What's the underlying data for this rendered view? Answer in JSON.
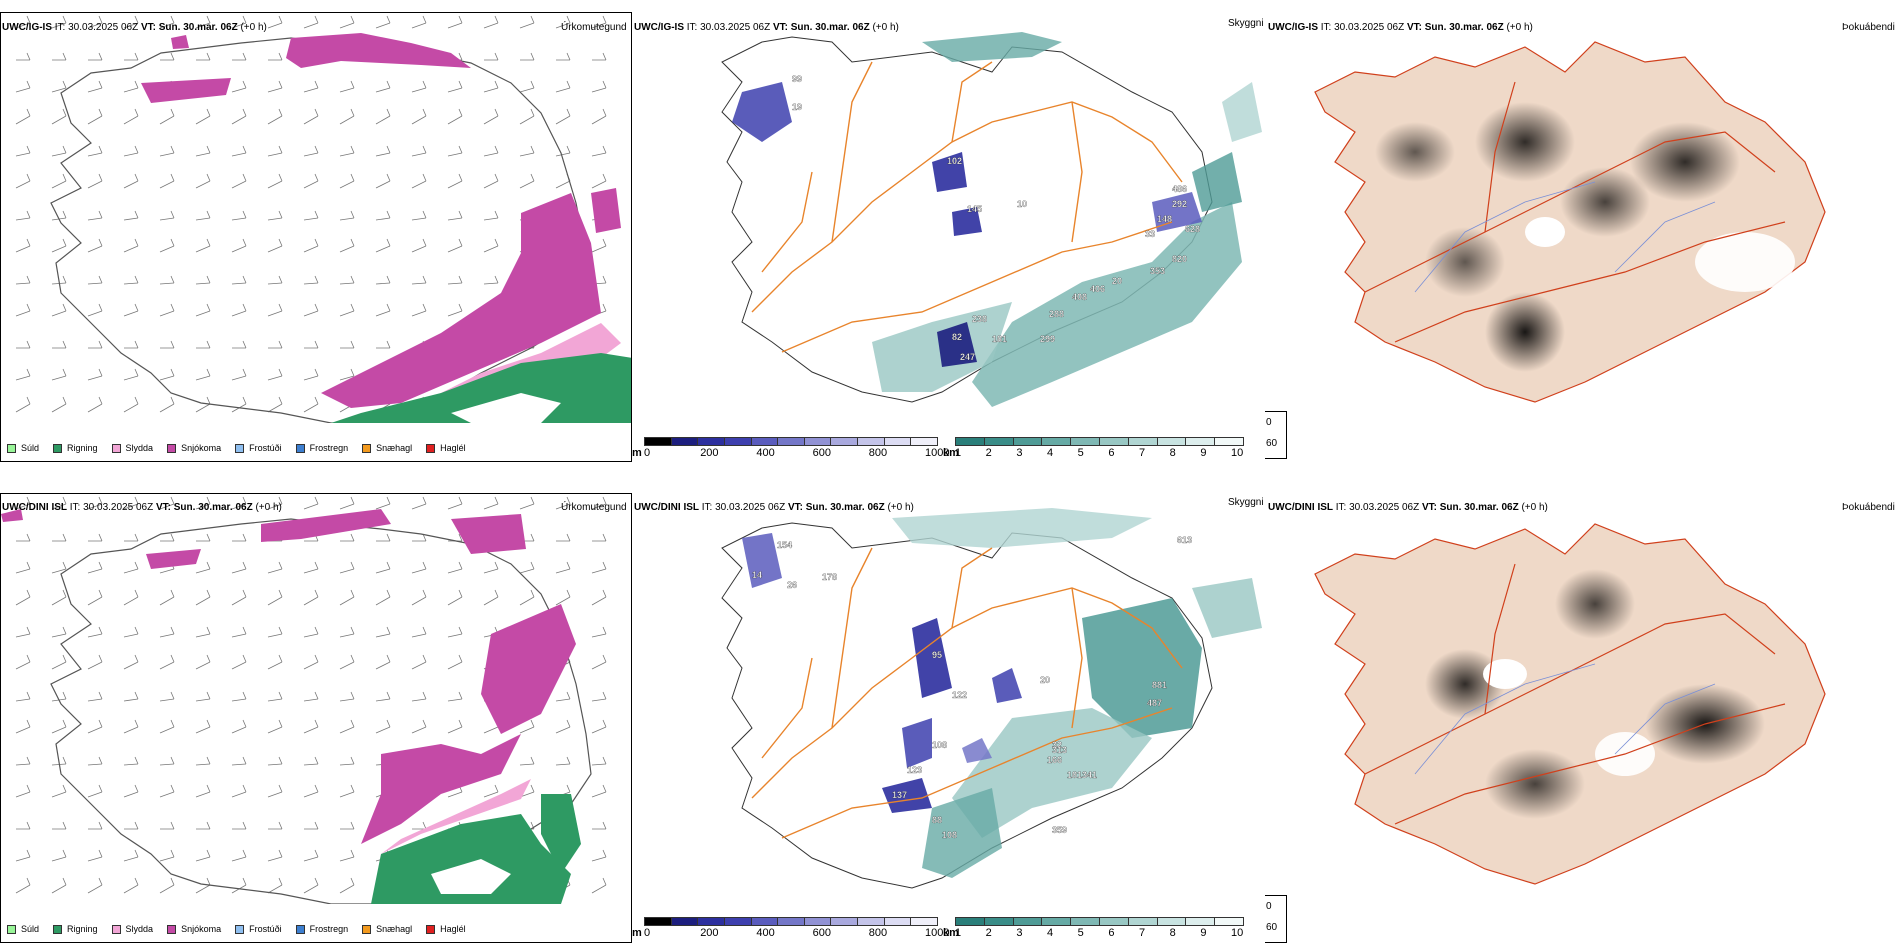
{
  "rows": [
    {
      "precip": {
        "header": {
          "model": "UWC/IG-IS",
          "it_label": "IT:",
          "it_value": "30.03.2025 06Z",
          "vt_label": "VT:",
          "vt_value": "Sun. 30.mar. 06Z",
          "lead": "(+0 h)"
        },
        "title": "Úrkomutegund"
      },
      "cloud": {
        "header": {
          "model": "UWC/IG-IS",
          "it_label": "IT:",
          "it_value": "30.03.2025 06Z",
          "vt_label": "VT:",
          "vt_value": "Sun. 30.mar. 06Z",
          "lead": "(+0 h)"
        },
        "title": "Skyggni",
        "labels": [
          "99",
          "19",
          "102",
          "145",
          "10",
          "486",
          "292",
          "148",
          "33",
          "628",
          "820",
          "353",
          "20",
          "406",
          "408",
          "288",
          "299",
          "82",
          "247",
          "181",
          "238"
        ]
      },
      "fog": {
        "header": {
          "model": "UWC/IG-IS",
          "it_label": "IT:",
          "it_value": "30.03.2025 06Z",
          "vt_label": "VT:",
          "vt_value": "Sun. 30.mar. 06Z",
          "lead": "(+0 h)"
        },
        "title": "Þokuábendi"
      }
    },
    {
      "precip": {
        "header": {
          "model": "UWC/DINI ISL",
          "it_label": "IT:",
          "it_value": "30.03.2025 06Z",
          "vt_label": "VT:",
          "vt_value": "Sun. 30.mar. 06Z",
          "lead": "(+0 h)"
        },
        "title": "Úrkomutegund"
      },
      "cloud": {
        "header": {
          "model": "UWC/DINI ISL",
          "it_label": "IT:",
          "it_value": "30.03.2025 06Z",
          "vt_label": "VT:",
          "vt_value": "Sun. 30.mar. 06Z",
          "lead": "(+0 h)"
        },
        "title": "Skyggni",
        "labels": [
          "154",
          "14",
          "178",
          "26",
          "613",
          "95",
          "122",
          "20",
          "881",
          "487",
          "108",
          "32",
          "166",
          "181",
          "341",
          "313",
          "137",
          "88",
          "123",
          "108",
          "359"
        ]
      },
      "fog": {
        "header": {
          "model": "UWC/DINI ISL",
          "it_label": "IT:",
          "it_value": "30.03.2025 06Z",
          "vt_label": "VT:",
          "vt_value": "Sun. 30.mar. 06Z",
          "lead": "(+0 h)"
        },
        "title": "Þokuábendi"
      }
    }
  ],
  "precip_legend": [
    {
      "label": "Súld",
      "color": "#98f598"
    },
    {
      "label": "Rigning",
      "color": "#2e9a63"
    },
    {
      "label": "Slydda",
      "color": "#f2a6d6"
    },
    {
      "label": "Snjókoma",
      "color": "#c44aa6"
    },
    {
      "label": "Frostúði",
      "color": "#8fbff0"
    },
    {
      "label": "Frostregn",
      "color": "#3d7fd0"
    },
    {
      "label": "Snæhagl",
      "color": "#f39a1e"
    },
    {
      "label": "Haglél",
      "color": "#e02020"
    }
  ],
  "ceiling_scale": {
    "unit": "m",
    "ticks": [
      "0",
      "200",
      "400",
      "600",
      "800",
      "1000"
    ],
    "colors": [
      "#000000",
      "#1c1e7e",
      "#2c2f9e",
      "#3d3fae",
      "#5a5cbd",
      "#7477c8",
      "#9192d4",
      "#a9a9de",
      "#c4c4e9",
      "#dcdcf3",
      "#efeff9"
    ]
  },
  "visibility_scale": {
    "unit": "km",
    "ticks": [
      "1",
      "2",
      "3",
      "4",
      "5",
      "6",
      "7",
      "8",
      "9",
      "10"
    ],
    "colors": [
      "#2a7f7a",
      "#3a8d88",
      "#4f9b96",
      "#66aaa5",
      "#7fb8b4",
      "#98c7c3",
      "#b0d5d2",
      "#c8e3e1",
      "#ddeeed",
      "#f2f9f8"
    ]
  },
  "fog_scale": {
    "ticks": [
      "0",
      "60"
    ],
    "colors": [
      "#000000",
      "#ffffff"
    ]
  }
}
